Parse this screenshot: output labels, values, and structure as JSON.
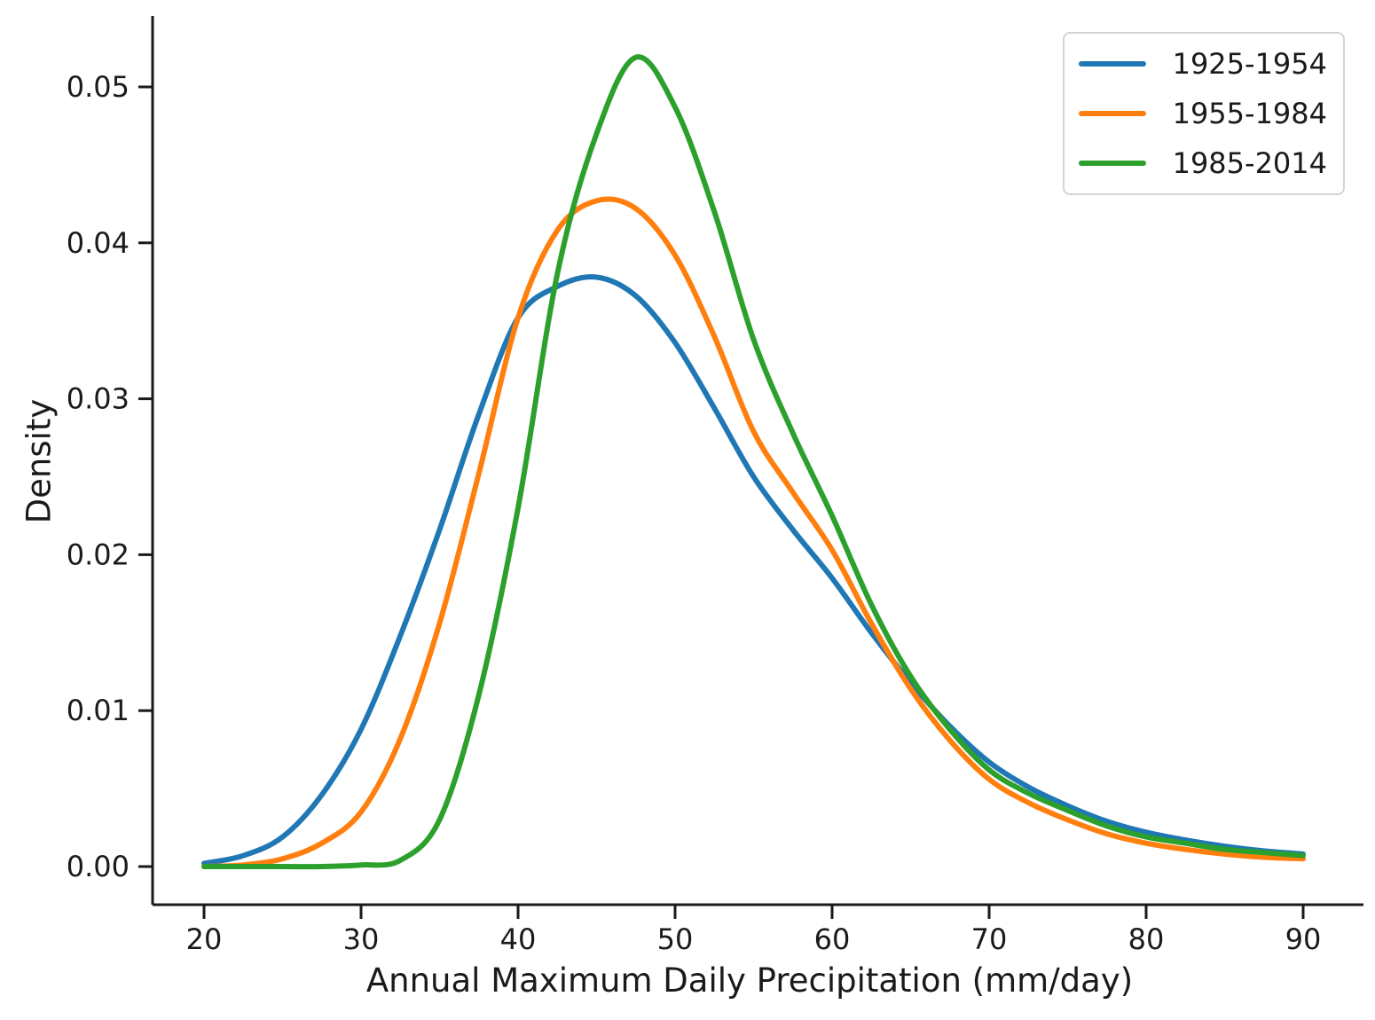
{
  "chart_data": {
    "type": "line",
    "title": "",
    "xlabel": "Annual Maximum Daily Precipitation (mm/day)",
    "ylabel": "Density",
    "grid": false,
    "legend_position": "upper right",
    "xlim": [
      16.7,
      93.7
    ],
    "ylim": [
      -0.0025,
      0.0546
    ],
    "x_ticks": [
      20,
      30,
      40,
      50,
      60,
      70,
      80,
      90
    ],
    "y_ticks": [
      {
        "value": 0.0,
        "label": "0.00"
      },
      {
        "value": 0.01,
        "label": "0.01"
      },
      {
        "value": 0.02,
        "label": "0.02"
      },
      {
        "value": 0.03,
        "label": "0.03"
      },
      {
        "value": 0.04,
        "label": "0.04"
      },
      {
        "value": 0.05,
        "label": "0.05"
      }
    ],
    "x": [
      20,
      22.5,
      25,
      27.5,
      30,
      32.5,
      35,
      37.5,
      40,
      42.5,
      45,
      47.5,
      50,
      52.5,
      55,
      57.5,
      60,
      62.5,
      65,
      67.5,
      70,
      72.5,
      75,
      77.5,
      80,
      82.5,
      85,
      87.5,
      90
    ],
    "series": [
      {
        "name": "1925-1954",
        "color": "#1f77b4",
        "peak": {
          "x": 44.5,
          "y": 0.0378
        },
        "values": [
          0.0002,
          0.0007,
          0.0019,
          0.0046,
          0.0088,
          0.0148,
          0.0216,
          0.029,
          0.0352,
          0.0372,
          0.0378,
          0.0366,
          0.0336,
          0.0294,
          0.025,
          0.0216,
          0.0185,
          0.015,
          0.0118,
          0.009,
          0.0067,
          0.0051,
          0.0039,
          0.0029,
          0.0022,
          0.0017,
          0.0013,
          0.001,
          0.0008
        ]
      },
      {
        "name": "1955-1984",
        "color": "#ff7f0e",
        "peak": {
          "x": 45.5,
          "y": 0.0428
        },
        "values": [
          0.0,
          0.0001,
          0.0005,
          0.0015,
          0.0035,
          0.0082,
          0.0156,
          0.0252,
          0.0352,
          0.0408,
          0.0427,
          0.0422,
          0.0392,
          0.034,
          0.0279,
          0.024,
          0.0203,
          0.0156,
          0.0114,
          0.0081,
          0.0056,
          0.0041,
          0.003,
          0.0021,
          0.0015,
          0.0011,
          0.0008,
          0.0006,
          0.0005
        ]
      },
      {
        "name": "1985-2014",
        "color": "#2ca02c",
        "peak": {
          "x": 47.0,
          "y": 0.0519
        },
        "values": [
          0.0,
          0.0,
          0.0,
          0.0,
          0.0001,
          0.0004,
          0.003,
          0.011,
          0.023,
          0.038,
          0.047,
          0.0519,
          0.0487,
          0.042,
          0.0338,
          0.0278,
          0.0225,
          0.0168,
          0.0122,
          0.0088,
          0.0062,
          0.0047,
          0.0036,
          0.0026,
          0.0019,
          0.0015,
          0.0011,
          0.0009,
          0.0007
        ]
      }
    ]
  }
}
